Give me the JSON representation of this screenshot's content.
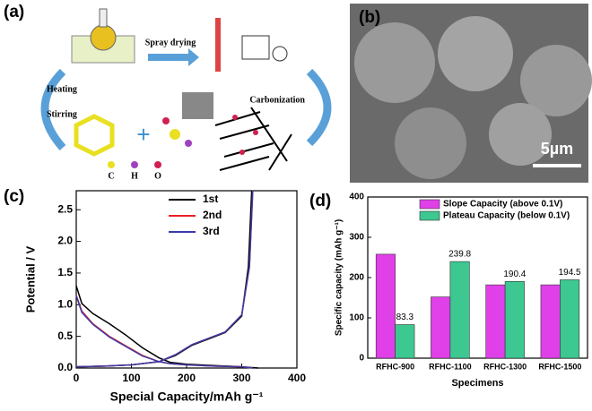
{
  "panel_a": {
    "label": "(a)",
    "spray": "Spray drying",
    "carbonization": "Carbonization",
    "heating": "Heating",
    "stirring": "Stirring",
    "atoms": [
      "C",
      "H",
      "O"
    ]
  },
  "panel_b": {
    "label": "(b)",
    "scale_bar": "5µm"
  },
  "chart_data": [
    {
      "type": "line",
      "panel_label": "(c)",
      "x_label": "Special Capacity/mAh g⁻¹",
      "y_label": "Potential / V",
      "xlim": [
        0,
        400
      ],
      "xticks": [
        0,
        100,
        200,
        300,
        400
      ],
      "ylim": [
        0,
        2.8
      ],
      "yticks": [
        {
          "value": 0,
          "label": "0.0"
        },
        0.5,
        {
          "value": 1,
          "label": "1.0"
        },
        1.5,
        {
          "value": 2,
          "label": "2.0"
        },
        2.5
      ],
      "legend": "upper center",
      "series": [
        {
          "name": "1st",
          "color": "#000000",
          "x": [
            0,
            10,
            30,
            60,
            90,
            120,
            150,
            170,
            200,
            250,
            300,
            330,
            null,
            0,
            50,
            100,
            150,
            180,
            210,
            240,
            270,
            300,
            312,
            318
          ],
          "values": [
            1.3,
            1.02,
            0.86,
            0.7,
            0.52,
            0.32,
            0.16,
            0.09,
            0.06,
            0.04,
            0.02,
            0.0,
            null,
            0.02,
            0.03,
            0.05,
            0.1,
            0.2,
            0.36,
            0.46,
            0.56,
            0.82,
            1.6,
            2.8
          ]
        },
        {
          "name": "2nd",
          "color": "#e8202a",
          "x": [
            0,
            10,
            30,
            60,
            90,
            120,
            150,
            170,
            200,
            250,
            300,
            320,
            null,
            0,
            50,
            100,
            150,
            180,
            210,
            240,
            270,
            300,
            314,
            320
          ],
          "values": [
            1.15,
            0.9,
            0.7,
            0.5,
            0.35,
            0.2,
            0.1,
            0.07,
            0.05,
            0.03,
            0.02,
            0.0,
            null,
            0.02,
            0.03,
            0.05,
            0.1,
            0.21,
            0.37,
            0.47,
            0.57,
            0.84,
            1.6,
            2.8
          ]
        },
        {
          "name": "3rd",
          "color": "#3a3aa8",
          "x": [
            0,
            10,
            30,
            60,
            90,
            120,
            150,
            170,
            200,
            250,
            300,
            320,
            null,
            0,
            50,
            100,
            150,
            180,
            210,
            240,
            270,
            300,
            314,
            320
          ],
          "values": [
            1.14,
            0.88,
            0.69,
            0.49,
            0.34,
            0.19,
            0.1,
            0.07,
            0.05,
            0.03,
            0.02,
            0.0,
            null,
            0.02,
            0.03,
            0.05,
            0.1,
            0.21,
            0.37,
            0.47,
            0.57,
            0.84,
            1.6,
            2.8
          ]
        }
      ]
    },
    {
      "type": "bar",
      "panel_label": "(d)",
      "x_label": "Specimens",
      "y_label": "Specific capacity (mAh g⁻¹)",
      "categories": [
        "RFHC-900",
        "RFHC-1100",
        "RFHC-1300",
        "RFHC-1500"
      ],
      "ylim": [
        0,
        400
      ],
      "yticks": [
        0,
        100,
        200,
        300,
        400
      ],
      "legend": "upper left",
      "series": [
        {
          "name": "Slope Capacity (above 0.1V)",
          "color": "#e040e8",
          "values": [
            258,
            152,
            182,
            182
          ]
        },
        {
          "name": "Plateau Capacity (below 0.1V)",
          "color": "#3cc890",
          "values": [
            83.3,
            239.8,
            190.4,
            194.5
          ],
          "show_labels": true
        }
      ]
    }
  ]
}
